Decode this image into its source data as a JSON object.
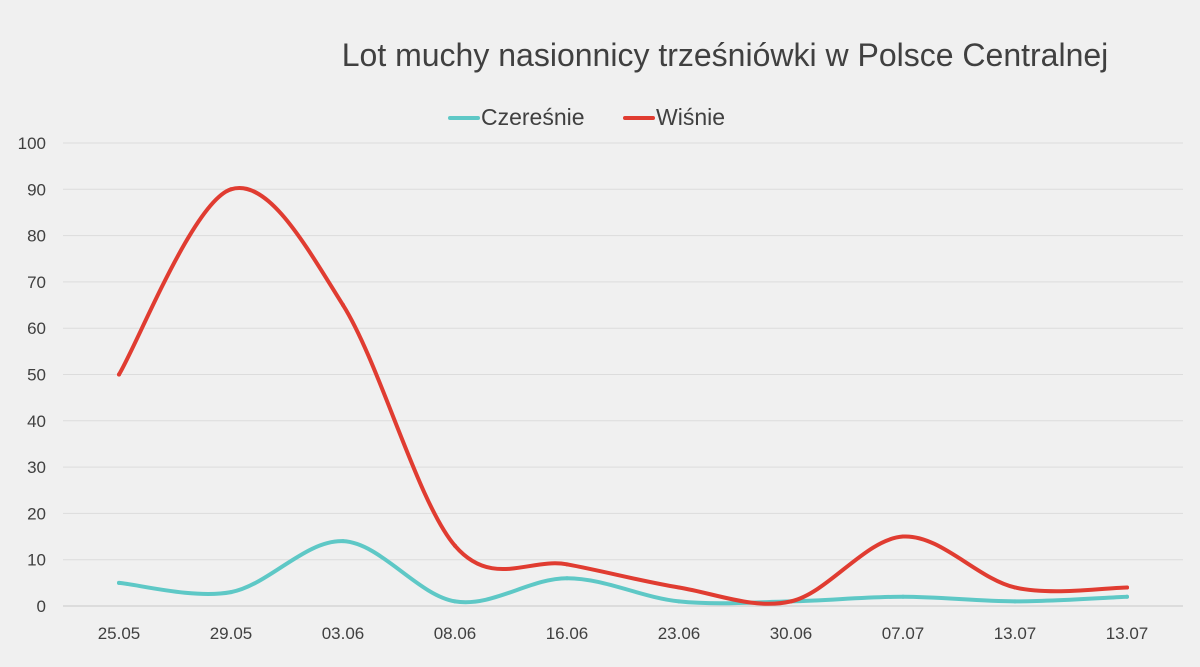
{
  "chart_data": {
    "type": "line",
    "title": "Lot muchy nasionnicy trześniówki w Polsce Centralnej",
    "xlabel": "",
    "ylabel": "",
    "categories": [
      "25.05",
      "29.05",
      "03.06",
      "08.06",
      "16.06",
      "23.06",
      "30.06",
      "07.07",
      "13.07",
      "13.07"
    ],
    "ylim": [
      0,
      100
    ],
    "yticks": [
      0,
      10,
      20,
      30,
      40,
      50,
      60,
      70,
      80,
      90,
      100
    ],
    "grid": true,
    "smooth": true,
    "legend_position": "top",
    "series": [
      {
        "name": "Czereśnie",
        "color": "#5ec8c6",
        "values": [
          5,
          3,
          14,
          1,
          6,
          1,
          1,
          2,
          1,
          2
        ]
      },
      {
        "name": "Wiśnie",
        "color": "#e03c31",
        "values": [
          50,
          90,
          65,
          13,
          9,
          4,
          1,
          15,
          4,
          4
        ]
      }
    ]
  }
}
